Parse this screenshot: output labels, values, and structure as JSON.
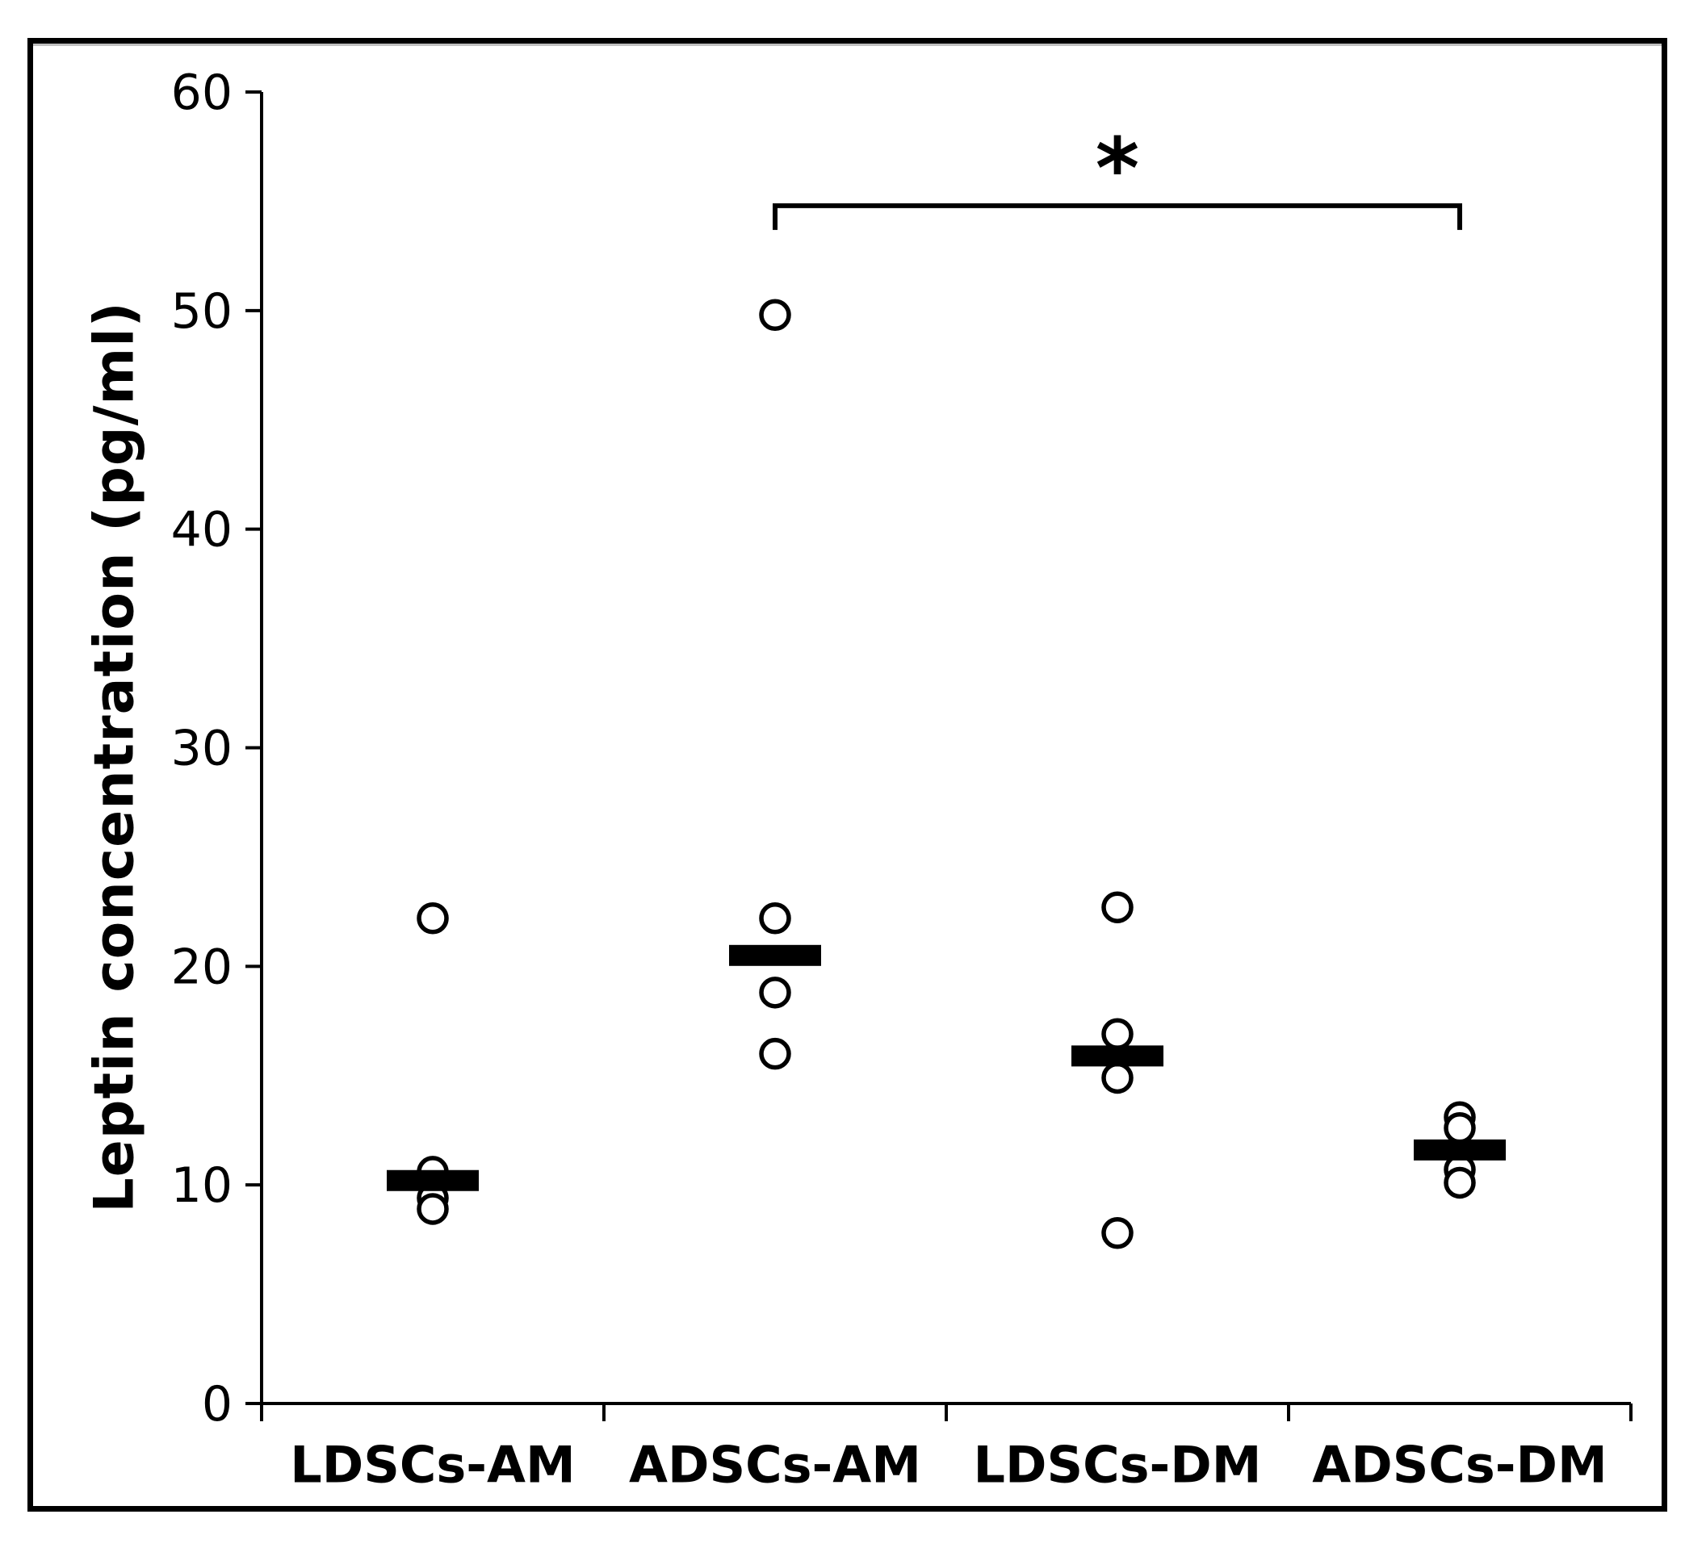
{
  "figure": {
    "background": "#ffffff",
    "border_color": "#000000"
  },
  "chart_data": {
    "type": "scatter",
    "title": "",
    "xlabel": "",
    "ylabel": "Leptin concentration (pg/ml)",
    "ylim": [
      0,
      60
    ],
    "yticks": [
      0,
      10,
      20,
      30,
      40,
      50,
      60
    ],
    "categories": [
      "LDSCs-AM",
      "ADSCs-AM",
      "LDSCs-DM",
      "ADSCs-DM"
    ],
    "marker": "open-circle",
    "grid": false,
    "legend_position": "none",
    "series": [
      {
        "name": "LDSCs-AM",
        "values": [
          22.2,
          10.6,
          9.4,
          8.9
        ],
        "median": 10.2
      },
      {
        "name": "ADSCs-AM",
        "values": [
          49.8,
          22.2,
          18.8,
          16.0
        ],
        "median": 20.5
      },
      {
        "name": "LDSCs-DM",
        "values": [
          22.7,
          16.9,
          14.9,
          7.8
        ],
        "median": 15.9
      },
      {
        "name": "ADSCs-DM",
        "values": [
          13.1,
          12.6,
          10.7,
          10.1
        ],
        "median": 11.6
      }
    ],
    "significance": {
      "from": "ADSCs-AM",
      "to": "ADSCs-DM",
      "label": "*",
      "bar_y": 54.8
    },
    "colors": {
      "axis": "#000000",
      "marker_stroke": "#000000",
      "marker_fill": "#ffffff",
      "median_bar": "#000000"
    }
  }
}
